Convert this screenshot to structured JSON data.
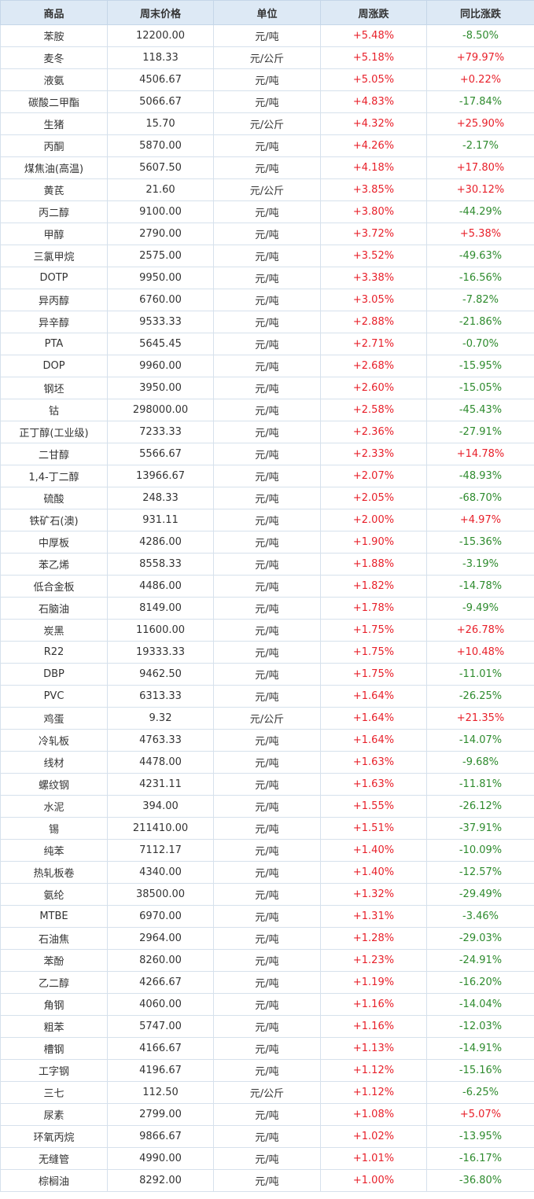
{
  "headers": [
    "商品",
    "周末价格",
    "单位",
    "周涨跌",
    "同比涨跌"
  ],
  "colors": {
    "up": "#e8202a",
    "down": "#2e8b2e",
    "header_bg": "#dde9f5"
  },
  "rows": [
    [
      "苯胺",
      "12200.00",
      "元/吨",
      "+5.48%",
      "-8.50%"
    ],
    [
      "麦冬",
      "118.33",
      "元/公斤",
      "+5.18%",
      "+79.97%"
    ],
    [
      "液氨",
      "4506.67",
      "元/吨",
      "+5.05%",
      "+0.22%"
    ],
    [
      "碳酸二甲酯",
      "5066.67",
      "元/吨",
      "+4.83%",
      "-17.84%"
    ],
    [
      "生猪",
      "15.70",
      "元/公斤",
      "+4.32%",
      "+25.90%"
    ],
    [
      "丙酮",
      "5870.00",
      "元/吨",
      "+4.26%",
      "-2.17%"
    ],
    [
      "煤焦油(高温)",
      "5607.50",
      "元/吨",
      "+4.18%",
      "+17.80%"
    ],
    [
      "黄芪",
      "21.60",
      "元/公斤",
      "+3.85%",
      "+30.12%"
    ],
    [
      "丙二醇",
      "9100.00",
      "元/吨",
      "+3.80%",
      "-44.29%"
    ],
    [
      "甲醇",
      "2790.00",
      "元/吨",
      "+3.72%",
      "+5.38%"
    ],
    [
      "三氯甲烷",
      "2575.00",
      "元/吨",
      "+3.52%",
      "-49.63%"
    ],
    [
      "DOTP",
      "9950.00",
      "元/吨",
      "+3.38%",
      "-16.56%"
    ],
    [
      "异丙醇",
      "6760.00",
      "元/吨",
      "+3.05%",
      "-7.82%"
    ],
    [
      "异辛醇",
      "9533.33",
      "元/吨",
      "+2.88%",
      "-21.86%"
    ],
    [
      "PTA",
      "5645.45",
      "元/吨",
      "+2.71%",
      "-0.70%"
    ],
    [
      "DOP",
      "9960.00",
      "元/吨",
      "+2.68%",
      "-15.95%"
    ],
    [
      "钢坯",
      "3950.00",
      "元/吨",
      "+2.60%",
      "-15.05%"
    ],
    [
      "钴",
      "298000.00",
      "元/吨",
      "+2.58%",
      "-45.43%"
    ],
    [
      "正丁醇(工业级)",
      "7233.33",
      "元/吨",
      "+2.36%",
      "-27.91%"
    ],
    [
      "二甘醇",
      "5566.67",
      "元/吨",
      "+2.33%",
      "+14.78%"
    ],
    [
      "1,4-丁二醇",
      "13966.67",
      "元/吨",
      "+2.07%",
      "-48.93%"
    ],
    [
      "硫酸",
      "248.33",
      "元/吨",
      "+2.05%",
      "-68.70%"
    ],
    [
      "铁矿石(澳)",
      "931.11",
      "元/吨",
      "+2.00%",
      "+4.97%"
    ],
    [
      "中厚板",
      "4286.00",
      "元/吨",
      "+1.90%",
      "-15.36%"
    ],
    [
      "苯乙烯",
      "8558.33",
      "元/吨",
      "+1.88%",
      "-3.19%"
    ],
    [
      "低合金板",
      "4486.00",
      "元/吨",
      "+1.82%",
      "-14.78%"
    ],
    [
      "石脑油",
      "8149.00",
      "元/吨",
      "+1.78%",
      "-9.49%"
    ],
    [
      "炭黑",
      "11600.00",
      "元/吨",
      "+1.75%",
      "+26.78%"
    ],
    [
      "R22",
      "19333.33",
      "元/吨",
      "+1.75%",
      "+10.48%"
    ],
    [
      "DBP",
      "9462.50",
      "元/吨",
      "+1.75%",
      "-11.01%"
    ],
    [
      "PVC",
      "6313.33",
      "元/吨",
      "+1.64%",
      "-26.25%"
    ],
    [
      "鸡蛋",
      "9.32",
      "元/公斤",
      "+1.64%",
      "+21.35%"
    ],
    [
      "冷轧板",
      "4763.33",
      "元/吨",
      "+1.64%",
      "-14.07%"
    ],
    [
      "线材",
      "4478.00",
      "元/吨",
      "+1.63%",
      "-9.68%"
    ],
    [
      "螺纹钢",
      "4231.11",
      "元/吨",
      "+1.63%",
      "-11.81%"
    ],
    [
      "水泥",
      "394.00",
      "元/吨",
      "+1.55%",
      "-26.12%"
    ],
    [
      "锡",
      "211410.00",
      "元/吨",
      "+1.51%",
      "-37.91%"
    ],
    [
      "纯苯",
      "7112.17",
      "元/吨",
      "+1.40%",
      "-10.09%"
    ],
    [
      "热轧板卷",
      "4340.00",
      "元/吨",
      "+1.40%",
      "-12.57%"
    ],
    [
      "氨纶",
      "38500.00",
      "元/吨",
      "+1.32%",
      "-29.49%"
    ],
    [
      "MTBE",
      "6970.00",
      "元/吨",
      "+1.31%",
      "-3.46%"
    ],
    [
      "石油焦",
      "2964.00",
      "元/吨",
      "+1.28%",
      "-29.03%"
    ],
    [
      "苯酚",
      "8260.00",
      "元/吨",
      "+1.23%",
      "-24.91%"
    ],
    [
      "乙二醇",
      "4266.67",
      "元/吨",
      "+1.19%",
      "-16.20%"
    ],
    [
      "角钢",
      "4060.00",
      "元/吨",
      "+1.16%",
      "-14.04%"
    ],
    [
      "粗苯",
      "5747.00",
      "元/吨",
      "+1.16%",
      "-12.03%"
    ],
    [
      "槽钢",
      "4166.67",
      "元/吨",
      "+1.13%",
      "-14.91%"
    ],
    [
      "工字钢",
      "4196.67",
      "元/吨",
      "+1.12%",
      "-15.16%"
    ],
    [
      "三七",
      "112.50",
      "元/公斤",
      "+1.12%",
      "-6.25%"
    ],
    [
      "尿素",
      "2799.00",
      "元/吨",
      "+1.08%",
      "+5.07%"
    ],
    [
      "环氧丙烷",
      "9866.67",
      "元/吨",
      "+1.02%",
      "-13.95%"
    ],
    [
      "无缝管",
      "4990.00",
      "元/吨",
      "+1.01%",
      "-16.17%"
    ],
    [
      "棕榈油",
      "8292.00",
      "元/吨",
      "+1.00%",
      "-36.80%"
    ]
  ]
}
